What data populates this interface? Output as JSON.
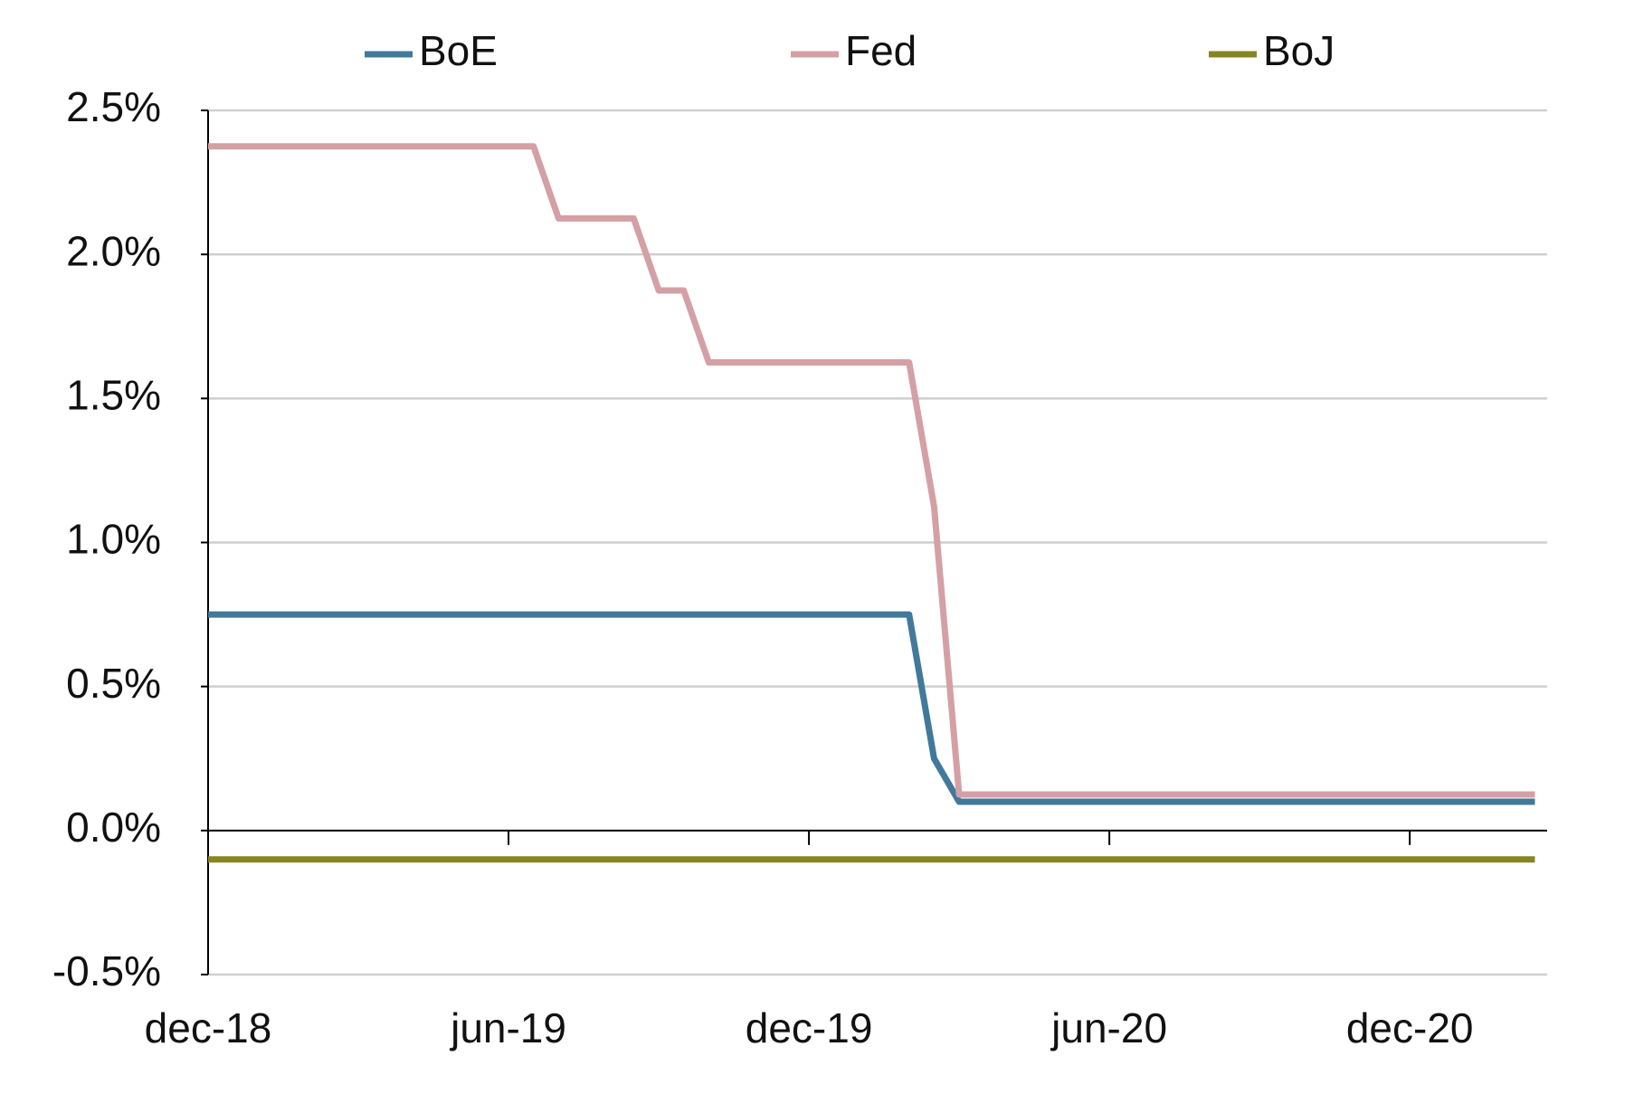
{
  "chart_data": {
    "type": "line",
    "categories": [
      "dec-18",
      null,
      null,
      null,
      null,
      null,
      null,
      null,
      null,
      null,
      null,
      null,
      "jun-19",
      null,
      null,
      null,
      null,
      null,
      null,
      null,
      null,
      null,
      null,
      null,
      "dec-19",
      null,
      null,
      null,
      null,
      null,
      null,
      null,
      null,
      null,
      null,
      null,
      "jun-20",
      null,
      null,
      null,
      null,
      null,
      null,
      null,
      null,
      null,
      null,
      null,
      "dec-20",
      null,
      null,
      null,
      null,
      null
    ],
    "series": [
      {
        "name": "BoE",
        "color": "#41799b",
        "values": [
          0.75,
          0.75,
          0.75,
          0.75,
          0.75,
          0.75,
          0.75,
          0.75,
          0.75,
          0.75,
          0.75,
          0.75,
          0.75,
          0.75,
          0.75,
          0.75,
          0.75,
          0.75,
          0.75,
          0.75,
          0.75,
          0.75,
          0.75,
          0.75,
          0.75,
          0.75,
          0.75,
          0.75,
          0.75,
          0.25,
          0.1,
          0.1,
          0.1,
          0.1,
          0.1,
          0.1,
          0.1,
          0.1,
          0.1,
          0.1,
          0.1,
          0.1,
          0.1,
          0.1,
          0.1,
          0.1,
          0.1,
          0.1,
          0.1,
          0.1,
          0.1,
          0.1,
          0.1,
          0.1
        ]
      },
      {
        "name": "Fed",
        "color": "#d4a0a5",
        "values": [
          2.375,
          2.375,
          2.375,
          2.375,
          2.375,
          2.375,
          2.375,
          2.375,
          2.375,
          2.375,
          2.375,
          2.375,
          2.375,
          2.375,
          2.125,
          2.125,
          2.125,
          2.125,
          1.875,
          1.875,
          1.625,
          1.625,
          1.625,
          1.625,
          1.625,
          1.625,
          1.625,
          1.625,
          1.625,
          1.125,
          0.125,
          0.125,
          0.125,
          0.125,
          0.125,
          0.125,
          0.125,
          0.125,
          0.125,
          0.125,
          0.125,
          0.125,
          0.125,
          0.125,
          0.125,
          0.125,
          0.125,
          0.125,
          0.125,
          0.125,
          0.125,
          0.125,
          0.125,
          0.125
        ]
      },
      {
        "name": "BoJ",
        "color": "#868524",
        "values": [
          -0.1,
          -0.1,
          -0.1,
          -0.1,
          -0.1,
          -0.1,
          -0.1,
          -0.1,
          -0.1,
          -0.1,
          -0.1,
          -0.1,
          -0.1,
          -0.1,
          -0.1,
          -0.1,
          -0.1,
          -0.1,
          -0.1,
          -0.1,
          -0.1,
          -0.1,
          -0.1,
          -0.1,
          -0.1,
          -0.1,
          -0.1,
          -0.1,
          -0.1,
          -0.1,
          -0.1,
          -0.1,
          -0.1,
          -0.1,
          -0.1,
          -0.1,
          -0.1,
          -0.1,
          -0.1,
          -0.1,
          -0.1,
          -0.1,
          -0.1,
          -0.1,
          -0.1,
          -0.1,
          -0.1,
          -0.1,
          -0.1,
          -0.1,
          -0.1,
          -0.1,
          -0.1,
          -0.1
        ]
      }
    ],
    "ylim": [
      -0.5,
      2.5
    ],
    "yticks": [
      {
        "value": -0.5,
        "label": "-0.5%"
      },
      {
        "value": 0,
        "label": "0.0%"
      },
      {
        "value": 0.5,
        "label": "0.5%"
      },
      {
        "value": 1,
        "label": "1.0%"
      },
      {
        "value": 1.5,
        "label": "1.5%"
      },
      {
        "value": 2,
        "label": "2.0%"
      },
      {
        "value": 2.5,
        "label": "2.5%"
      }
    ],
    "grid": true,
    "legend": "top"
  }
}
